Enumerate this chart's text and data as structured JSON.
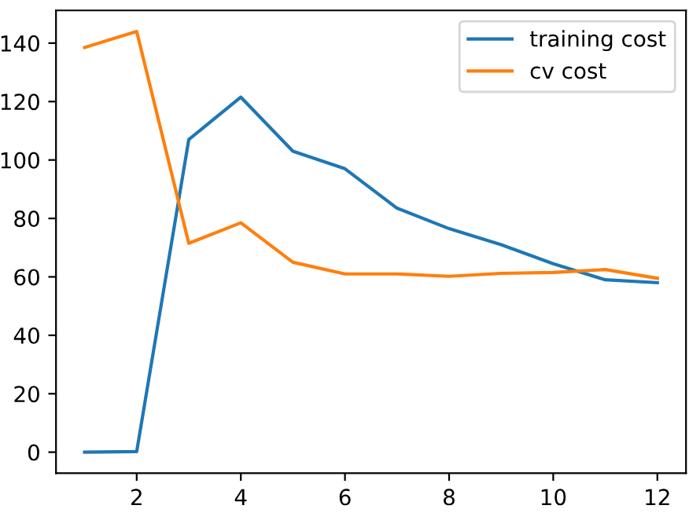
{
  "chart_data": {
    "type": "line",
    "x": [
      1,
      2,
      3,
      4,
      5,
      6,
      7,
      8,
      9,
      10,
      11,
      12
    ],
    "series": [
      {
        "name": "training cost",
        "color": "#1f77b4",
        "values": [
          0,
          0.2,
          107,
          121.5,
          103,
          97,
          83.5,
          76.5,
          71,
          64.5,
          59,
          58
        ]
      },
      {
        "name": "cv cost",
        "color": "#ff7f0e",
        "values": [
          138.5,
          144,
          71.5,
          78.5,
          65,
          61,
          61,
          60.2,
          61.2,
          61.5,
          62.5,
          59.5
        ]
      }
    ],
    "xlim": [
      0.45,
      12.55
    ],
    "ylim": [
      -7.2,
      151.2
    ],
    "xticks": [
      2,
      4,
      6,
      8,
      10,
      12
    ],
    "yticks": [
      0,
      20,
      40,
      60,
      80,
      100,
      120,
      140
    ],
    "legend": "top right",
    "grid": false
  }
}
